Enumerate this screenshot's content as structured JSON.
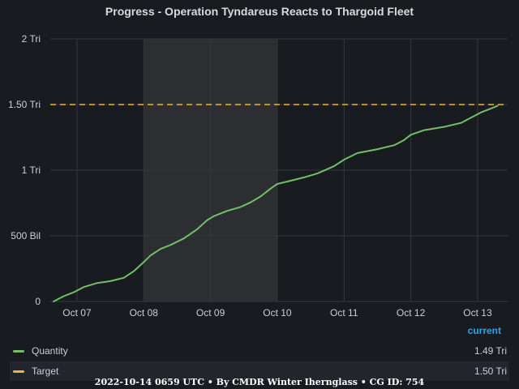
{
  "chart_data": {
    "type": "line",
    "title": "Progress - Operation Tyndareus Reacts to Thargoid Fleet",
    "xlabel": "",
    "ylabel": "",
    "x_tick_labels": [
      "Oct 07",
      "Oct 08",
      "Oct 09",
      "Oct 10",
      "Oct 11",
      "Oct 12",
      "Oct 13"
    ],
    "y_tick_labels": [
      "0",
      "500 Bil",
      "1 Tri",
      "1.50 Tri",
      "2 Tri"
    ],
    "y_unit": "billions",
    "ylim": [
      0,
      2000
    ],
    "xlim_days": [
      6.6,
      13.45
    ],
    "grid": true,
    "highlight_band_days": [
      8.0,
      10.0
    ],
    "series": [
      {
        "name": "Quantity",
        "color": "#73bf69",
        "x_days": [
          6.65,
          6.8,
          6.95,
          7.1,
          7.3,
          7.5,
          7.7,
          7.85,
          8.0,
          8.1,
          8.25,
          8.4,
          8.6,
          8.8,
          8.95,
          9.05,
          9.25,
          9.45,
          9.6,
          9.75,
          9.9,
          10.0,
          10.2,
          10.4,
          10.6,
          10.85,
          11.0,
          11.2,
          11.5,
          11.75,
          11.9,
          12.0,
          12.2,
          12.5,
          12.75,
          12.9,
          13.05,
          13.2,
          13.3
        ],
        "values": [
          0,
          40,
          70,
          110,
          140,
          155,
          180,
          230,
          300,
          350,
          400,
          430,
          480,
          550,
          620,
          650,
          690,
          720,
          755,
          800,
          860,
          895,
          920,
          945,
          975,
          1030,
          1080,
          1130,
          1160,
          1190,
          1230,
          1270,
          1305,
          1330,
          1360,
          1400,
          1440,
          1470,
          1490
        ]
      },
      {
        "name": "Target",
        "color": "#eab839",
        "dashed": true,
        "values": [
          1500,
          1500
        ]
      }
    ]
  },
  "legend": {
    "header": "current",
    "items": [
      {
        "name": "Quantity",
        "value": "1.49 Tri",
        "color": "#73bf69"
      },
      {
        "name": "Target",
        "value": "1.50 Tri",
        "color": "#eab839"
      }
    ]
  },
  "footer": "2022-10-14 0659 UTC • By CMDR Winter Iherngla​ss • CG ID: 754"
}
